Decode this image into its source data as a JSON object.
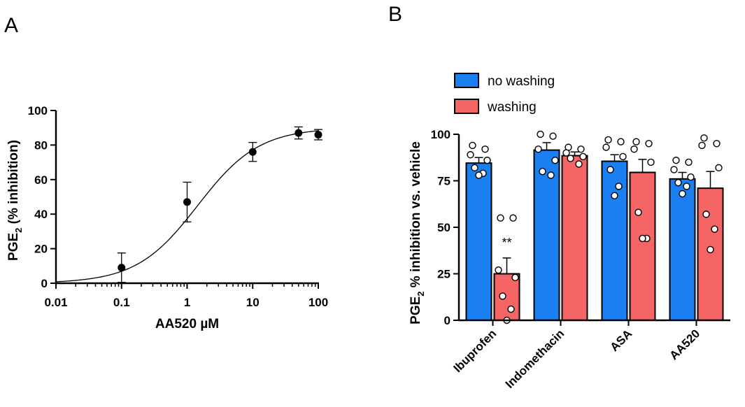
{
  "chart_data": [
    {
      "panel": "A",
      "type": "scatter",
      "subtype": "dose-response",
      "xscale": "log",
      "xlabel": "AA520 µM",
      "ylabel_parts": [
        "PGE",
        "2",
        " (% inhibition)"
      ],
      "xlim": [
        0.01,
        100
      ],
      "ylim": [
        0,
        100
      ],
      "xticks": [
        0.01,
        0.1,
        1,
        10,
        100
      ],
      "xtick_labels": [
        "0.01",
        "0.1",
        "1",
        "10",
        "100"
      ],
      "yticks": [
        0,
        20,
        40,
        60,
        80,
        100
      ],
      "ytick_labels": [
        "0",
        "20",
        "40",
        "60",
        "80",
        "100"
      ],
      "points": [
        {
          "x": 0.1,
          "y": 9,
          "err": 8.5
        },
        {
          "x": 1,
          "y": 47,
          "err": 11.5
        },
        {
          "x": 10,
          "y": 76,
          "err": 5.5
        },
        {
          "x": 50,
          "y": 87,
          "err": 3.5
        },
        {
          "x": 100,
          "y": 86,
          "err": 3
        }
      ],
      "fit": {
        "bottom": 0,
        "top": 90,
        "ic50": 1.45,
        "hill": 0.93
      }
    },
    {
      "panel": "B",
      "type": "bar",
      "categories": [
        "Ibuprofen",
        "Indomethacin",
        "ASA",
        "AA520"
      ],
      "ylabel_parts": [
        "PGE",
        "2",
        " % inhibition vs. vehicle"
      ],
      "ylim": [
        0,
        100
      ],
      "yticks": [
        0,
        25,
        50,
        75,
        100
      ],
      "ytick_labels": [
        "0",
        "25",
        "50",
        "75",
        "100"
      ],
      "series": [
        {
          "name": "no washing",
          "color": "#1a7ff0",
          "values": [
            84.5,
            91.5,
            85.5,
            76
          ],
          "sem": [
            3,
            4,
            3.5,
            3.5
          ],
          "points": [
            [
              94,
              92,
              89,
              86,
              82,
              79,
              78
            ],
            [
              100,
              99,
              92,
              86,
              80,
              78
            ],
            [
              97,
              96,
              93,
              88,
              81,
              72,
              67
            ],
            [
              86,
              85,
              81,
              77,
              74,
              72,
              68
            ]
          ]
        },
        {
          "name": "washing",
          "color": "#f56565",
          "values": [
            25,
            88.5,
            79.5,
            71
          ],
          "sem": [
            8.5,
            2,
            7,
            9
          ],
          "points": [
            [
              55,
              55,
              27,
              23,
              13,
              6,
              0
            ],
            [
              93,
              92,
              90,
              88,
              87,
              84
            ],
            [
              96,
              95,
              92,
              85,
              58,
              44,
              44
            ],
            [
              98,
              95,
              94,
              82,
              57,
              49,
              38
            ]
          ]
        }
      ],
      "annotations": [
        {
          "category": "Ibuprofen",
          "series": "washing",
          "text": "**"
        }
      ]
    }
  ]
}
